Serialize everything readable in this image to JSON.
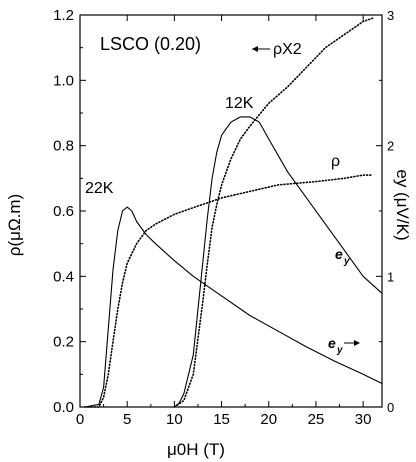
{
  "chart_data": {
    "type": "line",
    "title": "LSCO (0.20)",
    "xlabel": "μ0H (T)",
    "ylabel": "ρ(μΩ.m)",
    "y2label": "ey (μV/K)",
    "xlim": [
      0,
      32
    ],
    "ylim": [
      0,
      1.2
    ],
    "y2lim": [
      0,
      3.0
    ],
    "x_ticks": [
      0,
      5,
      10,
      15,
      20,
      25,
      30
    ],
    "y_ticks": [
      0.0,
      0.2,
      0.4,
      0.6,
      0.8,
      1.0,
      1.2
    ],
    "y2_ticks": [
      0,
      1,
      2,
      3
    ],
    "grid": false,
    "annotations": {
      "rho_x2": "ρX2",
      "rho": "ρ",
      "ey_upper": "e",
      "ey_lower": "e",
      "ey_sub": "y",
      "label_22k": "22K",
      "label_12k": "12K"
    },
    "series": [
      {
        "style": "dotted",
        "axis": "left",
        "x": [
          0.5,
          2,
          2.5,
          3,
          3.5,
          4,
          4.5,
          5,
          5.5,
          6,
          7,
          8,
          10,
          12,
          15,
          18,
          21,
          25,
          28,
          30,
          31
        ],
        "y": [
          0,
          0,
          0.03,
          0.1,
          0.2,
          0.3,
          0.38,
          0.44,
          0.47,
          0.5,
          0.54,
          0.56,
          0.59,
          0.61,
          0.64,
          0.66,
          0.68,
          0.69,
          0.7,
          0.71,
          0.71
        ]
      },
      {
        "style": "dotted",
        "axis": "left",
        "x": [
          10,
          11,
          12,
          13,
          13.5,
          14,
          14.5,
          15,
          16,
          17,
          18,
          20,
          22,
          24,
          26,
          28,
          30,
          31
        ],
        "y": [
          0,
          0.02,
          0.1,
          0.32,
          0.44,
          0.55,
          0.62,
          0.68,
          0.76,
          0.82,
          0.86,
          0.93,
          0.98,
          1.04,
          1.1,
          1.14,
          1.18,
          1.19
        ]
      },
      {
        "style": "solid",
        "axis": "right",
        "x": [
          0.5,
          2,
          2.5,
          3,
          3.5,
          4,
          4.5,
          5,
          5.5,
          6,
          7,
          8,
          10,
          12,
          15,
          18,
          21,
          24,
          27,
          30,
          32
        ],
        "y": [
          0,
          0.02,
          0.15,
          0.6,
          1.05,
          1.35,
          1.5,
          1.53,
          1.5,
          1.42,
          1.32,
          1.25,
          1.12,
          1.0,
          0.85,
          0.7,
          0.58,
          0.46,
          0.35,
          0.25,
          0.18
        ]
      },
      {
        "style": "solid",
        "axis": "right",
        "x": [
          0.5,
          5,
          8,
          10,
          10.5,
          11,
          12,
          13,
          13.5,
          14,
          14.5,
          15,
          16,
          17,
          18,
          19,
          20,
          22,
          24,
          26,
          28,
          30,
          32
        ],
        "y": [
          0,
          0,
          0,
          0,
          0.03,
          0.1,
          0.4,
          1.1,
          1.45,
          1.75,
          1.95,
          2.08,
          2.18,
          2.22,
          2.22,
          2.18,
          2.05,
          1.8,
          1.6,
          1.4,
          1.2,
          1.0,
          0.87
        ]
      }
    ]
  }
}
